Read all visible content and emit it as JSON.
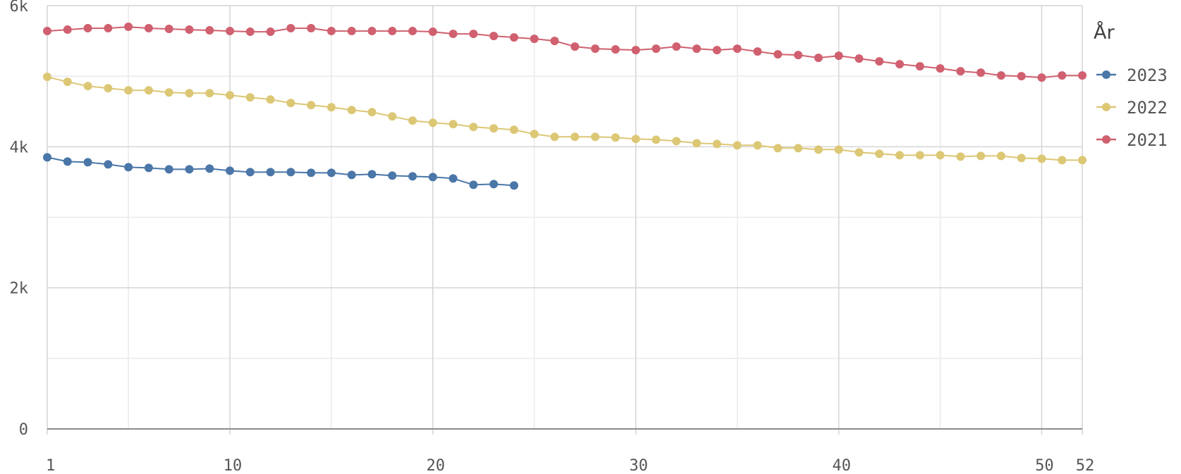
{
  "chart_data": {
    "type": "line",
    "title": "",
    "xlabel": "",
    "ylabel": "",
    "legend_title": "År",
    "legend_position": "right",
    "grid": true,
    "xlim": [
      1,
      52
    ],
    "ylim": [
      0,
      6000
    ],
    "x_ticks": [
      1,
      10,
      20,
      30,
      40,
      50,
      52
    ],
    "x_tick_labels": [
      "1",
      "10",
      "20",
      "30",
      "40",
      "50",
      "52"
    ],
    "y_ticks": [
      0,
      2000,
      4000,
      6000
    ],
    "y_tick_labels": [
      "0",
      "2k",
      "4k",
      "6k"
    ],
    "series": [
      {
        "name": "2023",
        "color": "#4a76a8",
        "x": [
          1,
          2,
          3,
          4,
          5,
          6,
          7,
          8,
          9,
          10,
          11,
          12,
          13,
          14,
          15,
          16,
          17,
          18,
          19,
          20,
          21,
          22,
          23,
          24
        ],
        "values": [
          3850,
          3790,
          3780,
          3750,
          3710,
          3700,
          3680,
          3680,
          3690,
          3660,
          3640,
          3640,
          3640,
          3630,
          3630,
          3600,
          3610,
          3590,
          3580,
          3570,
          3550,
          3460,
          3470,
          3450
        ]
      },
      {
        "name": "2022",
        "color": "#dcc775",
        "x": [
          1,
          2,
          3,
          4,
          5,
          6,
          7,
          8,
          9,
          10,
          11,
          12,
          13,
          14,
          15,
          16,
          17,
          18,
          19,
          20,
          21,
          22,
          23,
          24,
          25,
          26,
          27,
          28,
          29,
          30,
          31,
          32,
          33,
          34,
          35,
          36,
          37,
          38,
          39,
          40,
          41,
          42,
          43,
          44,
          45,
          46,
          47,
          48,
          49,
          50,
          51,
          52
        ],
        "values": [
          4990,
          4920,
          4860,
          4830,
          4800,
          4800,
          4770,
          4760,
          4760,
          4730,
          4700,
          4670,
          4620,
          4590,
          4560,
          4520,
          4490,
          4430,
          4370,
          4340,
          4320,
          4280,
          4260,
          4240,
          4180,
          4140,
          4140,
          4140,
          4130,
          4110,
          4100,
          4080,
          4050,
          4040,
          4020,
          4020,
          3980,
          3980,
          3960,
          3960,
          3920,
          3900,
          3880,
          3880,
          3880,
          3860,
          3870,
          3870,
          3840,
          3830,
          3810,
          3810
        ]
      },
      {
        "name": "2021",
        "color": "#d0606f",
        "x": [
          1,
          2,
          3,
          4,
          5,
          6,
          7,
          8,
          9,
          10,
          11,
          12,
          13,
          14,
          15,
          16,
          17,
          18,
          19,
          20,
          21,
          22,
          23,
          24,
          25,
          26,
          27,
          28,
          29,
          30,
          31,
          32,
          33,
          34,
          35,
          36,
          37,
          38,
          39,
          40,
          41,
          42,
          43,
          44,
          45,
          46,
          47,
          48,
          49,
          50,
          51,
          52
        ],
        "values": [
          5640,
          5660,
          5680,
          5680,
          5700,
          5680,
          5670,
          5660,
          5650,
          5640,
          5630,
          5630,
          5680,
          5680,
          5640,
          5640,
          5640,
          5640,
          5640,
          5630,
          5600,
          5600,
          5570,
          5550,
          5530,
          5500,
          5420,
          5390,
          5380,
          5370,
          5390,
          5420,
          5390,
          5370,
          5390,
          5350,
          5310,
          5300,
          5260,
          5290,
          5250,
          5210,
          5170,
          5140,
          5110,
          5070,
          5050,
          5010,
          5000,
          4980,
          5010,
          5010
        ]
      }
    ]
  }
}
